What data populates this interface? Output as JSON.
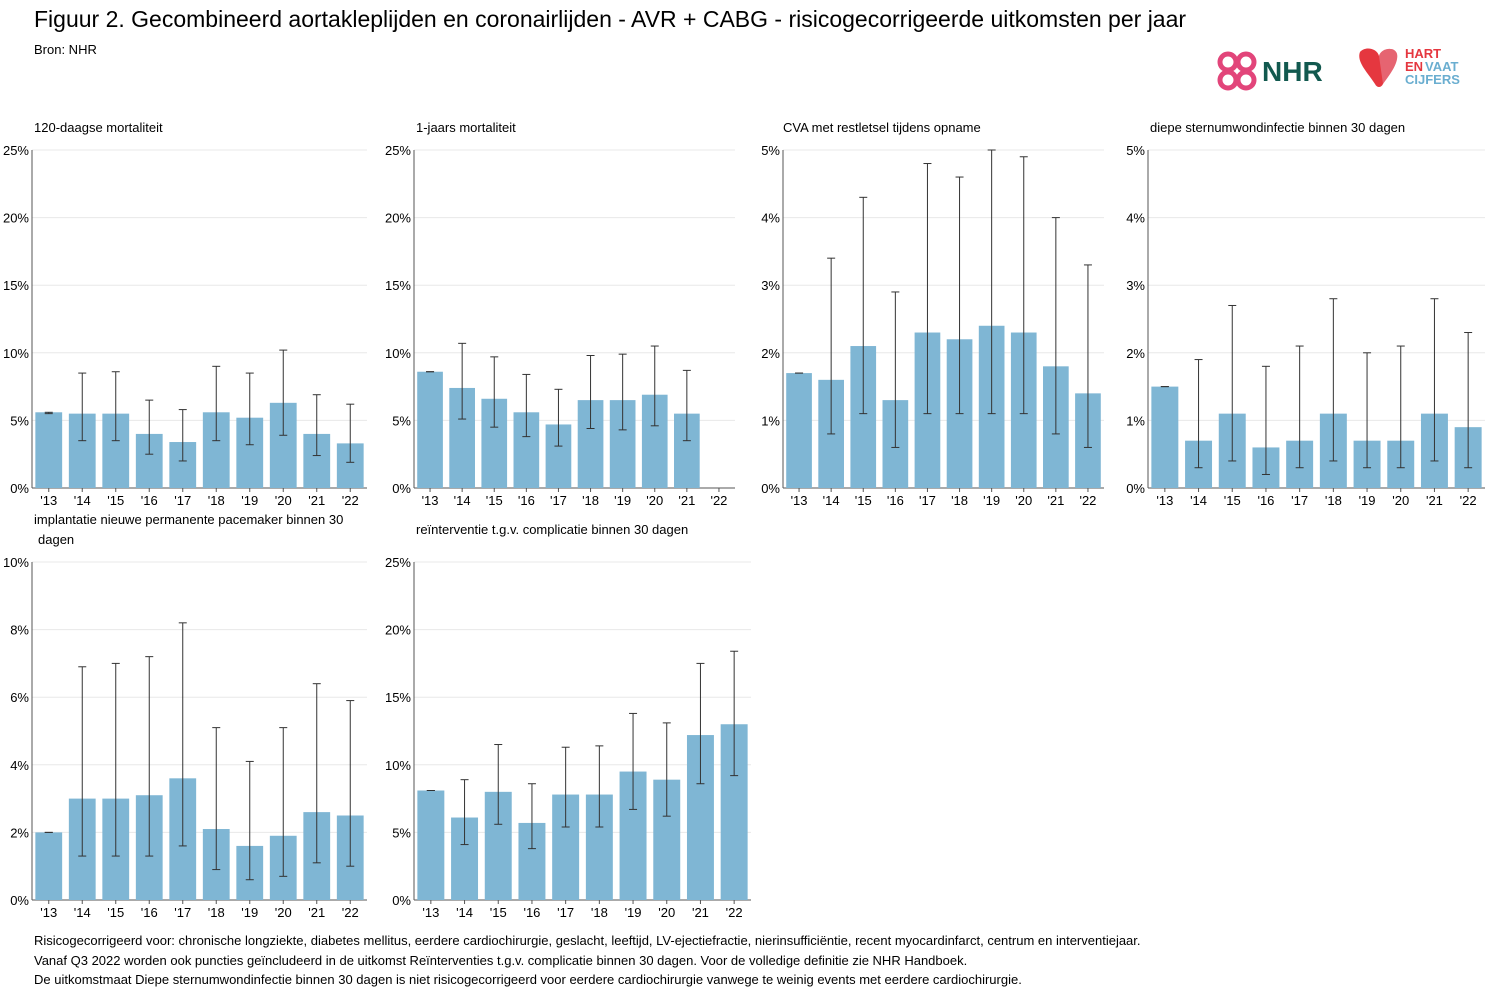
{
  "header": {
    "title": "Figuur 2. Gecombineerd aortakleplijden en coronairlijden - AVR + CABG - risicogecorrigeerde uitkomsten per jaar",
    "source": "Bron: NHR"
  },
  "logos": {
    "nhr": "NHR",
    "hartenvaatcijfers": [
      "HART",
      "EN",
      "VAAT",
      "CIJFERS"
    ]
  },
  "colors": {
    "bar": "#7fb6d4",
    "errorbar": "#333333",
    "grid": "#e8e8e8",
    "axis": "#555555"
  },
  "chart_data": [
    {
      "type": "bar",
      "title": "120-daagse mortaliteit",
      "xlabel": "",
      "ylabel": "",
      "categories": [
        "'13",
        "'14",
        "'15",
        "'16",
        "'17",
        "'18",
        "'19",
        "'20",
        "'21",
        "'22"
      ],
      "values": [
        5.6,
        5.5,
        5.5,
        4.0,
        3.4,
        5.6,
        5.2,
        6.3,
        4.0,
        3.3
      ],
      "lower": [
        5.5,
        3.5,
        3.5,
        2.5,
        2.0,
        3.5,
        3.2,
        3.9,
        2.4,
        1.9
      ],
      "upper": [
        5.6,
        8.5,
        8.6,
        6.5,
        5.8,
        9.0,
        8.5,
        10.2,
        6.9,
        6.2
      ],
      "ylim": [
        0,
        25
      ],
      "yticks": [
        "0%",
        "5%",
        "10%",
        "15%",
        "20%",
        "25%"
      ],
      "grid": true
    },
    {
      "type": "bar",
      "title": "1-jaars mortaliteit",
      "xlabel": "",
      "ylabel": "",
      "categories": [
        "'13",
        "'14",
        "'15",
        "'16",
        "'17",
        "'18",
        "'19",
        "'20",
        "'21",
        "'22"
      ],
      "values": [
        8.6,
        7.4,
        6.6,
        5.6,
        4.7,
        6.5,
        6.5,
        6.9,
        5.5,
        null
      ],
      "lower": [
        8.6,
        5.1,
        4.5,
        3.8,
        3.1,
        4.4,
        4.3,
        4.6,
        3.5,
        null
      ],
      "upper": [
        8.6,
        10.7,
        9.7,
        8.4,
        7.3,
        9.8,
        9.9,
        10.5,
        8.7,
        null
      ],
      "ylim": [
        0,
        25
      ],
      "yticks": [
        "0%",
        "5%",
        "10%",
        "15%",
        "20%",
        "25%"
      ],
      "grid": true
    },
    {
      "type": "bar",
      "title": "CVA met restletsel tijdens opname",
      "xlabel": "",
      "ylabel": "",
      "categories": [
        "'13",
        "'14",
        "'15",
        "'16",
        "'17",
        "'18",
        "'19",
        "'20",
        "'21",
        "'22"
      ],
      "values": [
        1.7,
        1.6,
        2.1,
        1.3,
        2.3,
        2.2,
        2.4,
        2.3,
        1.8,
        1.4
      ],
      "lower": [
        1.7,
        0.8,
        1.1,
        0.6,
        1.1,
        1.1,
        1.1,
        1.1,
        0.8,
        0.6
      ],
      "upper": [
        1.7,
        3.4,
        4.3,
        2.9,
        4.8,
        4.6,
        5.0,
        4.9,
        4.0,
        3.3
      ],
      "ylim": [
        0,
        5
      ],
      "yticks": [
        "0%",
        "1%",
        "2%",
        "3%",
        "4%",
        "5%"
      ],
      "grid": true
    },
    {
      "type": "bar",
      "title": "diepe sternumwondinfectie binnen 30 dagen",
      "xlabel": "",
      "ylabel": "",
      "categories": [
        "'13",
        "'14",
        "'15",
        "'16",
        "'17",
        "'18",
        "'19",
        "'20",
        "'21",
        "'22"
      ],
      "values": [
        1.5,
        0.7,
        1.1,
        0.6,
        0.7,
        1.1,
        0.7,
        0.7,
        1.1,
        0.9
      ],
      "lower": [
        1.5,
        0.3,
        0.4,
        0.2,
        0.3,
        0.4,
        0.3,
        0.3,
        0.4,
        0.3
      ],
      "upper": [
        1.5,
        1.9,
        2.7,
        1.8,
        2.1,
        2.8,
        2.0,
        2.1,
        2.8,
        2.3
      ],
      "ylim": [
        0,
        5
      ],
      "yticks": [
        "0%",
        "1%",
        "2%",
        "3%",
        "4%",
        "5%"
      ],
      "grid": true
    },
    {
      "type": "bar",
      "title": [
        "implantatie nieuwe permanente pacemaker binnen 30",
        "dagen"
      ],
      "xlabel": "",
      "ylabel": "",
      "categories": [
        "'13",
        "'14",
        "'15",
        "'16",
        "'17",
        "'18",
        "'19",
        "'20",
        "'21",
        "'22"
      ],
      "values": [
        2.0,
        3.0,
        3.0,
        3.1,
        3.6,
        2.1,
        1.6,
        1.9,
        2.6,
        2.5
      ],
      "lower": [
        2.0,
        1.3,
        1.3,
        1.3,
        1.6,
        0.9,
        0.6,
        0.7,
        1.1,
        1.0
      ],
      "upper": [
        2.0,
        6.9,
        7.0,
        7.2,
        8.2,
        5.1,
        4.1,
        5.1,
        6.4,
        5.9
      ],
      "ylim": [
        0,
        10
      ],
      "yticks": [
        "0%",
        "2%",
        "4%",
        "6%",
        "8%",
        "10%"
      ],
      "grid": true
    },
    {
      "type": "bar",
      "title": "reïnterventie t.g.v. complicatie binnen 30 dagen",
      "xlabel": "",
      "ylabel": "",
      "categories": [
        "'13",
        "'14",
        "'15",
        "'16",
        "'17",
        "'18",
        "'19",
        "'20",
        "'21",
        "'22"
      ],
      "values": [
        8.1,
        6.1,
        8.0,
        5.7,
        7.8,
        7.8,
        9.5,
        8.9,
        12.2,
        13.0
      ],
      "lower": [
        8.1,
        4.1,
        5.6,
        3.8,
        5.4,
        5.4,
        6.7,
        6.2,
        8.6,
        9.2
      ],
      "upper": [
        8.1,
        8.9,
        11.5,
        8.6,
        11.3,
        11.4,
        13.8,
        13.1,
        17.5,
        18.4
      ],
      "ylim": [
        0,
        25
      ],
      "yticks": [
        "0%",
        "5%",
        "10%",
        "15%",
        "20%",
        "25%"
      ],
      "grid": true
    }
  ],
  "footnotes": [
    "Risicogecorrigeerd voor: chronische longziekte, diabetes mellitus, eerdere cardiochirurgie, geslacht, leeftijd, LV-ejectiefractie, nierinsufficiëntie, recent myocardinfarct, centrum en interventiejaar.",
    "Vanaf Q3 2022 worden ook puncties geïncludeerd in de uitkomst Reïnterventies t.g.v. complicatie binnen 30 dagen. Voor de volledige definitie zie NHR Handboek.",
    "De uitkomstmaat Diepe sternumwondinfectie binnen 30 dagen is niet risicogecorrigeerd voor eerdere cardiochirurgie vanwege te weinig events met eerdere cardiochirurgie."
  ]
}
